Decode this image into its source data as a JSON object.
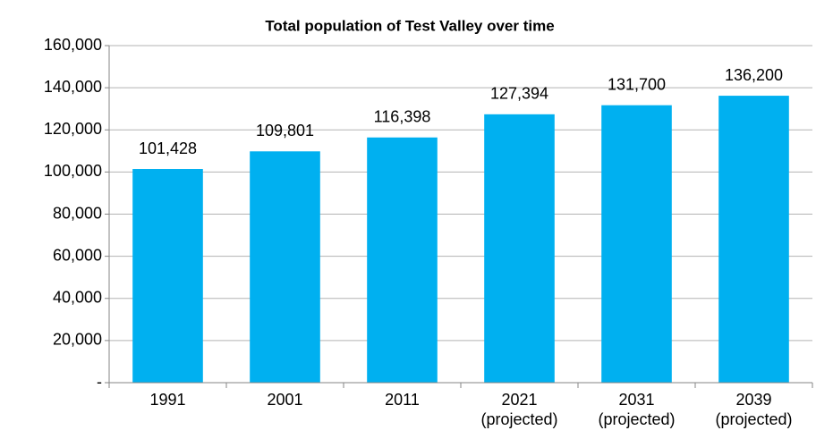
{
  "chart_data": {
    "type": "bar",
    "title": "Total population of Test Valley over time",
    "categories": [
      "1991",
      "2001",
      "2011",
      "2021\n(projected)",
      "2031\n(projected)",
      "2039\n(projected)"
    ],
    "values": [
      101428,
      109801,
      116398,
      127394,
      131700,
      136200
    ],
    "value_labels": [
      "101,428",
      "109,801",
      "116,398",
      "127,394",
      "131,700",
      "136,200"
    ],
    "color": "#00b0f0",
    "ylim": [
      0,
      160000
    ],
    "yticks": [
      {
        "value": 0,
        "label": "-"
      },
      {
        "value": 20000,
        "label": "20,000"
      },
      {
        "value": 40000,
        "label": "40,000"
      },
      {
        "value": 60000,
        "label": "60,000"
      },
      {
        "value": 80000,
        "label": "80,000"
      },
      {
        "value": 100000,
        "label": "100,000"
      },
      {
        "value": 120000,
        "label": "120,000"
      },
      {
        "value": 140000,
        "label": "140,000"
      },
      {
        "value": 160000,
        "label": "160,000"
      }
    ],
    "grid": true
  }
}
